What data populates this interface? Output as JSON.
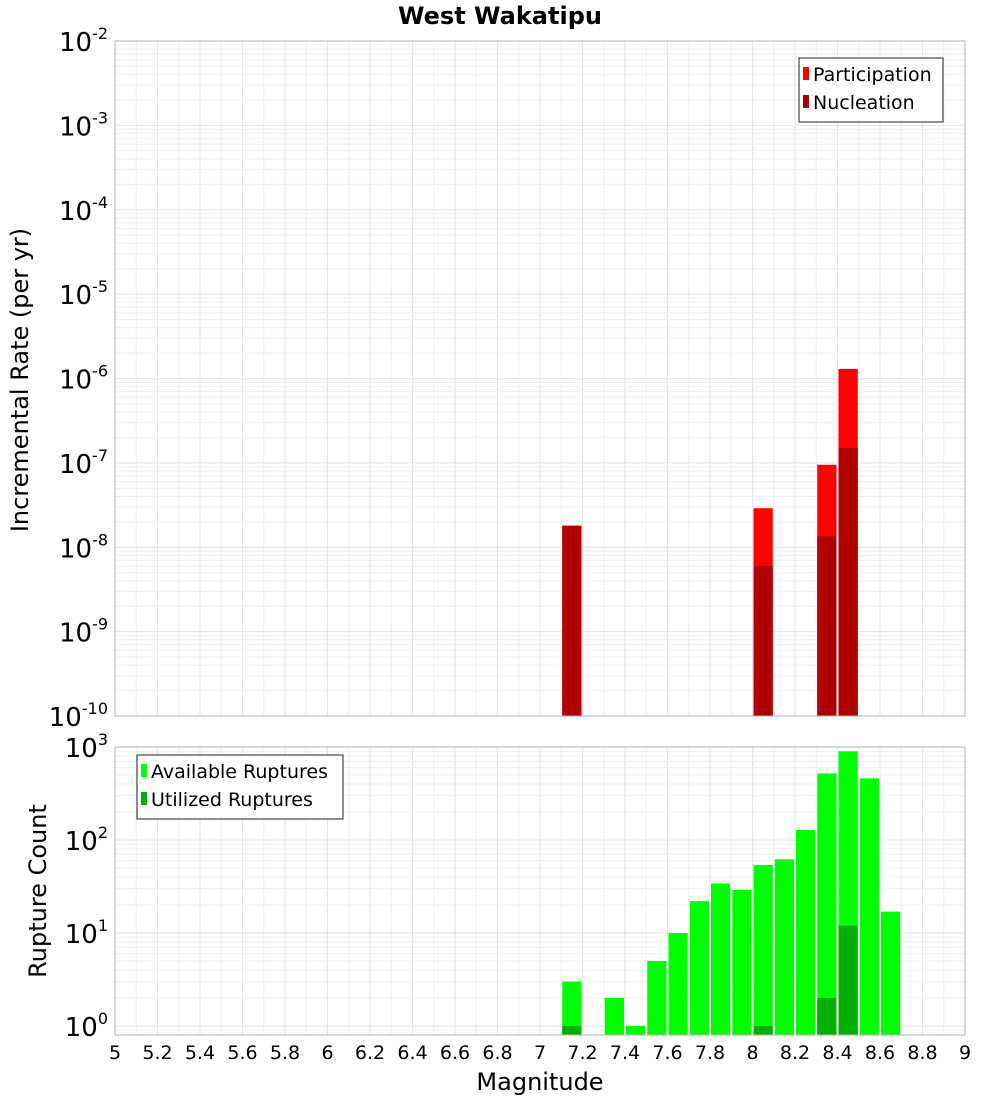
{
  "chart_data": [
    {
      "type": "bar",
      "title": "West Wakatipu",
      "xlabel": "",
      "ylabel": "Incremental Rate (per yr)",
      "yscale": "log",
      "ylim": [
        1e-10,
        0.01
      ],
      "xlim": [
        5,
        9
      ],
      "grid": true,
      "legend_position": "top-right",
      "y_ticks": [
        {
          "base": "10",
          "exp": "-10"
        },
        {
          "base": "10",
          "exp": "-9"
        },
        {
          "base": "10",
          "exp": "-8"
        },
        {
          "base": "10",
          "exp": "-7"
        },
        {
          "base": "10",
          "exp": "-6"
        },
        {
          "base": "10",
          "exp": "-5"
        },
        {
          "base": "10",
          "exp": "-4"
        },
        {
          "base": "10",
          "exp": "-3"
        },
        {
          "base": "10",
          "exp": "-2"
        }
      ],
      "series": [
        {
          "name": "Participation",
          "color": "#ff0000",
          "x": [
            7.15,
            8.05,
            8.35,
            8.45
          ],
          "values": [
            1.8e-08,
            2.9e-08,
            9.5e-08,
            1.3e-06
          ]
        },
        {
          "name": "Nucleation",
          "color": "#b00000",
          "x": [
            7.15,
            8.05,
            8.35,
            8.45
          ],
          "values": [
            1.8e-08,
            6e-09,
            1.35e-08,
            1.5e-07
          ]
        }
      ]
    },
    {
      "type": "bar",
      "title": "",
      "xlabel": "Magnitude",
      "ylabel": "Rupture Count",
      "yscale": "log",
      "ylim": [
        0.8,
        1000
      ],
      "xlim": [
        5,
        9
      ],
      "grid": true,
      "legend_position": "top-left",
      "x_ticks": [
        "5",
        "5.2",
        "5.4",
        "5.6",
        "5.8",
        "6",
        "6.2",
        "6.4",
        "6.6",
        "6.8",
        "7",
        "7.2",
        "7.4",
        "7.6",
        "7.8",
        "8",
        "8.2",
        "8.4",
        "8.6",
        "8.8",
        "9"
      ],
      "y_ticks": [
        {
          "base": "10",
          "exp": "0"
        },
        {
          "base": "10",
          "exp": "1"
        },
        {
          "base": "10",
          "exp": "2"
        },
        {
          "base": "10",
          "exp": "3"
        }
      ],
      "series": [
        {
          "name": "Available Ruptures",
          "color": "#00ff00",
          "x": [
            7.15,
            7.35,
            7.45,
            7.55,
            7.65,
            7.75,
            7.85,
            7.95,
            8.05,
            8.15,
            8.25,
            8.35,
            8.45,
            8.55,
            8.65
          ],
          "values": [
            3,
            2,
            1,
            5,
            10,
            22,
            34,
            29,
            54,
            62,
            128,
            520,
            900,
            460,
            17
          ]
        },
        {
          "name": "Utilized Ruptures",
          "color": "#00b000",
          "x": [
            7.15,
            8.05,
            8.35,
            8.45
          ],
          "values": [
            1,
            1,
            2,
            12
          ]
        }
      ]
    }
  ]
}
